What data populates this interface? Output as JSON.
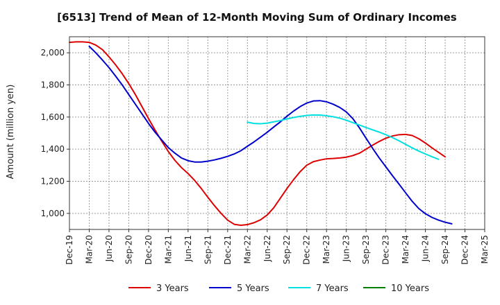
{
  "chart_data": {
    "type": "line",
    "title": "[6513]  Trend of Mean of 12-Month Moving Sum of Ordinary Incomes",
    "xlabel": "",
    "ylabel": "Amount (million yen)",
    "ylim": [
      900,
      2100
    ],
    "yticks": [
      1000,
      1200,
      1400,
      1600,
      1800,
      2000
    ],
    "ytick_labels": [
      "1,000",
      "1,200",
      "1,400",
      "1,600",
      "1,800",
      "2,000"
    ],
    "xticks": [
      "Dec-19",
      "Mar-20",
      "Jun-20",
      "Sep-20",
      "Dec-20",
      "Mar-21",
      "Jun-21",
      "Sep-21",
      "Dec-21",
      "Mar-22",
      "Jun-22",
      "Sep-22",
      "Dec-22",
      "Mar-23",
      "Jun-23",
      "Sep-23",
      "Dec-23",
      "Mar-24",
      "Jun-24",
      "Sep-24",
      "Dec-24",
      "Mar-25"
    ],
    "grid": true,
    "legend_position": "bottom",
    "series": [
      {
        "name": "3 Years",
        "color": "#dd0000",
        "start_index": 0,
        "values": [
          2065,
          2068,
          2068,
          2065,
          2048,
          2020,
          1975,
          1925,
          1870,
          1808,
          1740,
          1665,
          1590,
          1518,
          1450,
          1385,
          1330,
          1285,
          1248,
          1205,
          1155,
          1100,
          1048,
          1000,
          958,
          932,
          926,
          930,
          942,
          960,
          990,
          1035,
          1095,
          1155,
          1210,
          1260,
          1300,
          1322,
          1332,
          1340,
          1342,
          1345,
          1350,
          1360,
          1375,
          1400,
          1425,
          1448,
          1468,
          1482,
          1490,
          1492,
          1485,
          1465,
          1438,
          1408,
          1380,
          1352
        ]
      },
      {
        "name": "5 Years",
        "color": "#0000cc",
        "start_index": 3,
        "values": [
          2040,
          2000,
          1955,
          1908,
          1855,
          1800,
          1740,
          1680,
          1620,
          1560,
          1505,
          1457,
          1410,
          1375,
          1345,
          1328,
          1320,
          1320,
          1325,
          1333,
          1343,
          1355,
          1370,
          1390,
          1418,
          1445,
          1475,
          1505,
          1538,
          1570,
          1605,
          1637,
          1665,
          1687,
          1700,
          1702,
          1695,
          1680,
          1660,
          1632,
          1590,
          1532,
          1468,
          1405,
          1345,
          1290,
          1235,
          1182,
          1128,
          1075,
          1030,
          998,
          975,
          958,
          945,
          935
        ]
      },
      {
        "name": "7 Years",
        "color": "#00e0e0",
        "start_index": 27,
        "values": [
          1568,
          1560,
          1558,
          1562,
          1570,
          1578,
          1588,
          1597,
          1604,
          1610,
          1613,
          1612,
          1608,
          1602,
          1593,
          1580,
          1565,
          1550,
          1535,
          1520,
          1506,
          1490,
          1472,
          1452,
          1430,
          1408,
          1388,
          1370,
          1353,
          1337
        ]
      },
      {
        "name": "10 Years",
        "color": "#008000",
        "start_index": 0,
        "values": []
      }
    ]
  }
}
